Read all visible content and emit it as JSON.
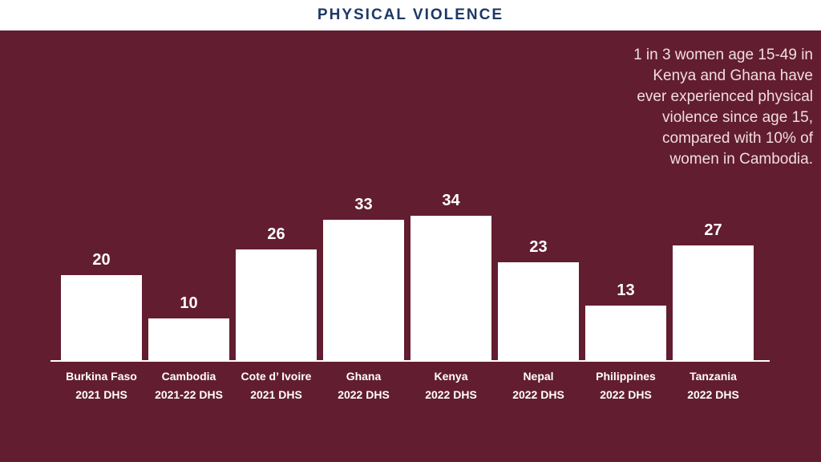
{
  "title": "PHYSICAL VIOLENCE",
  "colors": {
    "background": "#621D31",
    "title_text": "#1D3865",
    "bar_fill": "#FFFFFF",
    "axis": "#FFFFFF",
    "annotation_text": "#F1DDDD"
  },
  "annotation": {
    "lines": [
      "1 in 3 women age 15-49 in",
      "Kenya and Ghana have",
      "ever experienced physical",
      "violence since age 15,",
      "compared with 10% of",
      "women in Cambodia."
    ]
  },
  "chart_data": {
    "type": "bar",
    "title": "PHYSICAL VIOLENCE",
    "categories": [
      "Burkina Faso",
      "Cambodia",
      "Cote d’ Ivoire",
      "Ghana",
      "Kenya",
      "Nepal",
      "Philippines",
      "Tanzania"
    ],
    "sublabels": [
      "2021 DHS",
      "2021-22 DHS",
      "2021 DHS",
      "2022 DHS",
      "2022 DHS",
      "2022 DHS",
      "2022 DHS",
      "2022 DHS"
    ],
    "values": [
      20,
      10,
      26,
      33,
      34,
      23,
      13,
      27
    ],
    "xlabel": "",
    "ylabel": "",
    "ylim": [
      0,
      34
    ],
    "grid": false,
    "legend": false,
    "data_labels": true,
    "bar_color": "#FFFFFF",
    "background_color": "#621D31"
  }
}
